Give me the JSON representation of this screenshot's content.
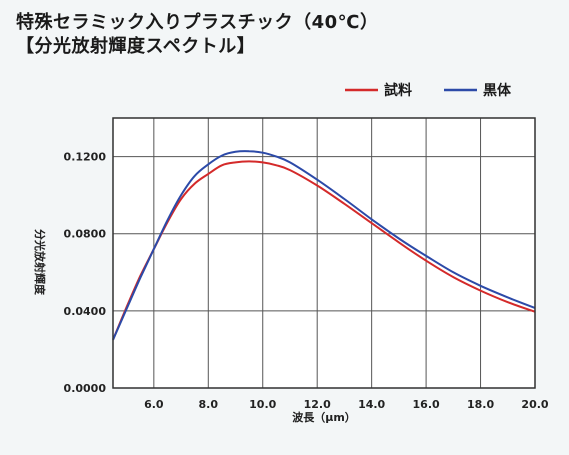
{
  "header": {
    "title": "特殊セラミック入りプラスチック（40℃）",
    "subtitle": "【分光放射輝度スペクトル】"
  },
  "chart_data": {
    "type": "line",
    "xlabel": "波長（μm）",
    "ylabel": "分光放射輝度",
    "xlim": [
      4.5,
      20.0
    ],
    "ylim": [
      0.0,
      0.14
    ],
    "x_ticks": [
      "6.0",
      "8.0",
      "10.0",
      "12.0",
      "14.0",
      "16.0",
      "18.0",
      "20.0"
    ],
    "y_ticks": [
      "0.0000",
      "0.0400",
      "0.0800",
      "0.1200"
    ],
    "grid": true,
    "legend_position": "top-right",
    "series": [
      {
        "name": "試料",
        "color": "#d42a2a",
        "x": [
          4.5,
          5.0,
          5.5,
          6.0,
          6.5,
          7.0,
          7.5,
          8.0,
          8.5,
          9.0,
          9.5,
          10.0,
          10.5,
          11.0,
          12.0,
          13.0,
          14.0,
          15.0,
          16.0,
          17.0,
          18.0,
          19.0,
          20.0
        ],
        "y": [
          0.025,
          0.042,
          0.058,
          0.072,
          0.086,
          0.098,
          0.106,
          0.111,
          0.1155,
          0.117,
          0.1175,
          0.117,
          0.1155,
          0.113,
          0.105,
          0.0955,
          0.0855,
          0.0755,
          0.066,
          0.0575,
          0.0505,
          0.0445,
          0.0395
        ]
      },
      {
        "name": "黒体",
        "color": "#2c4aa8",
        "x": [
          4.5,
          5.0,
          5.5,
          6.0,
          6.5,
          7.0,
          7.5,
          8.0,
          8.5,
          9.0,
          9.5,
          10.0,
          10.5,
          11.0,
          12.0,
          13.0,
          14.0,
          15.0,
          16.0,
          17.0,
          18.0,
          19.0,
          20.0
        ],
        "y": [
          0.025,
          0.041,
          0.057,
          0.072,
          0.087,
          0.1,
          0.11,
          0.116,
          0.1205,
          0.1225,
          0.1228,
          0.122,
          0.12,
          0.117,
          0.108,
          0.098,
          0.0875,
          0.0775,
          0.0685,
          0.06,
          0.053,
          0.047,
          0.0415
        ]
      }
    ]
  }
}
